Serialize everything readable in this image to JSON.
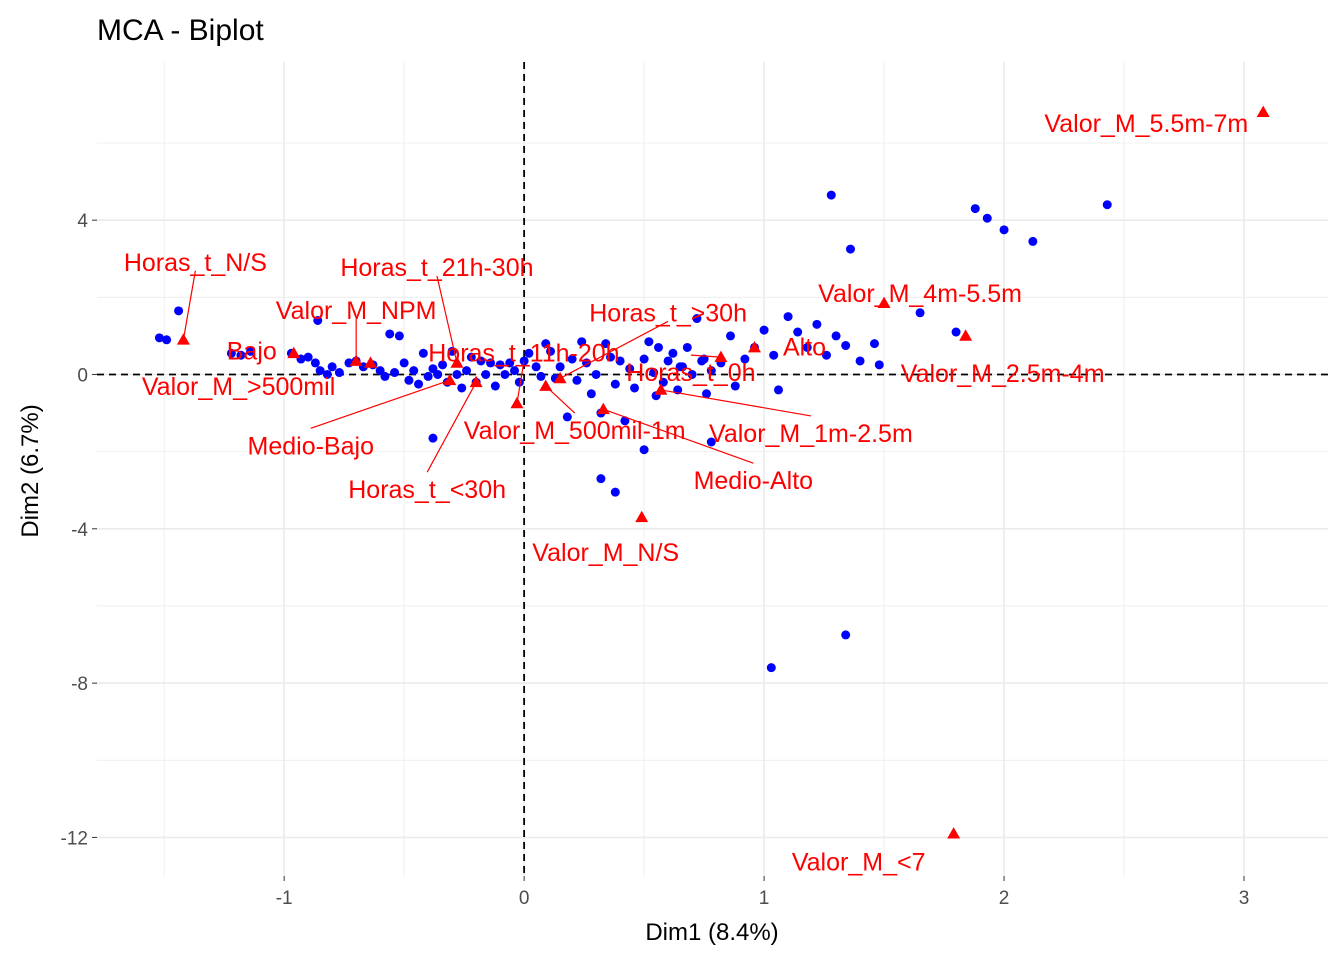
{
  "chart_data": {
    "type": "scatter",
    "title": "MCA - Biplot",
    "xlabel": "Dim1 (8.4%)",
    "ylabel": "Dim2 (6.7%)",
    "xlim": [
      -1.78,
      3.35
    ],
    "ylim": [
      -13.0,
      8.1
    ],
    "x_ticks": [
      -1,
      0,
      1,
      2,
      3
    ],
    "x_tick_labels": [
      "-1",
      "0",
      "1",
      "2",
      "3"
    ],
    "y_ticks": [
      -12,
      -8,
      -4,
      0,
      4
    ],
    "y_tick_labels": [
      "-12",
      "-8",
      "-4",
      "0",
      "4"
    ],
    "grid": true,
    "reference_lines": {
      "x": 0,
      "y": 0,
      "style": "dashed"
    },
    "colors": {
      "individuals": "#0000ff",
      "categories": "#ff0000",
      "grid": "#ebebeb",
      "text": "#000000",
      "ticks": "#4d4d4d"
    },
    "series": [
      {
        "kind": "individuals",
        "marker": "circle",
        "points": [
          [
            -1.52,
            0.95
          ],
          [
            -1.49,
            0.9
          ],
          [
            -1.22,
            0.55
          ],
          [
            -1.18,
            0.5
          ],
          [
            -1.14,
            0.6
          ],
          [
            -0.97,
            0.55
          ],
          [
            -0.93,
            0.4
          ],
          [
            -0.9,
            0.45
          ],
          [
            -0.87,
            0.3
          ],
          [
            -0.85,
            0.1
          ],
          [
            -0.82,
            0.0
          ],
          [
            -0.8,
            0.2
          ],
          [
            -0.77,
            0.05
          ],
          [
            -0.73,
            0.3
          ],
          [
            -0.7,
            0.35
          ],
          [
            -0.67,
            0.2
          ],
          [
            -0.63,
            0.25
          ],
          [
            -0.6,
            0.1
          ],
          [
            -0.58,
            -0.05
          ],
          [
            -0.56,
            1.05
          ],
          [
            -0.54,
            0.05
          ],
          [
            -0.52,
            1.0
          ],
          [
            -0.5,
            0.3
          ],
          [
            -0.48,
            -0.15
          ],
          [
            -0.46,
            0.1
          ],
          [
            -0.44,
            -0.25
          ],
          [
            -0.42,
            0.55
          ],
          [
            -0.4,
            -0.05
          ],
          [
            -0.38,
            0.15
          ],
          [
            -0.36,
            0.0
          ],
          [
            -0.34,
            0.25
          ],
          [
            -0.32,
            -0.2
          ],
          [
            -0.3,
            0.6
          ],
          [
            -0.28,
            0.0
          ],
          [
            -0.26,
            -0.35
          ],
          [
            -0.24,
            0.1
          ],
          [
            -0.22,
            0.45
          ],
          [
            -0.2,
            -0.2
          ],
          [
            -0.18,
            0.35
          ],
          [
            -0.16,
            0.0
          ],
          [
            -0.14,
            0.3
          ],
          [
            -0.12,
            -0.3
          ],
          [
            -0.1,
            0.25
          ],
          [
            -0.08,
            0.0
          ],
          [
            -0.06,
            0.3
          ],
          [
            -0.04,
            0.1
          ],
          [
            -0.02,
            -0.2
          ],
          [
            0.0,
            0.35
          ],
          [
            0.02,
            0.55
          ],
          [
            0.05,
            0.2
          ],
          [
            0.07,
            -0.05
          ],
          [
            0.09,
            0.8
          ],
          [
            0.11,
            0.6
          ],
          [
            0.13,
            -0.1
          ],
          [
            0.15,
            0.2
          ],
          [
            0.18,
            -1.1
          ],
          [
            0.2,
            0.4
          ],
          [
            0.22,
            -0.15
          ],
          [
            0.24,
            0.85
          ],
          [
            0.26,
            0.3
          ],
          [
            0.28,
            -0.5
          ],
          [
            0.3,
            0.0
          ],
          [
            0.32,
            -1.0
          ],
          [
            0.34,
            0.8
          ],
          [
            0.36,
            0.45
          ],
          [
            0.38,
            -0.25
          ],
          [
            0.4,
            0.35
          ],
          [
            0.42,
            -1.2
          ],
          [
            0.44,
            0.15
          ],
          [
            0.46,
            -0.35
          ],
          [
            0.5,
            0.4
          ],
          [
            0.52,
            0.85
          ],
          [
            0.54,
            0.05
          ],
          [
            0.56,
            0.7
          ],
          [
            0.58,
            -0.2
          ],
          [
            0.6,
            0.35
          ],
          [
            0.62,
            0.55
          ],
          [
            0.64,
            -0.4
          ],
          [
            0.66,
            0.2
          ],
          [
            0.68,
            0.7
          ],
          [
            0.7,
            0.0
          ],
          [
            0.72,
            1.45
          ],
          [
            0.74,
            0.35
          ],
          [
            0.76,
            -0.5
          ],
          [
            0.78,
            0.1
          ],
          [
            0.82,
            0.3
          ],
          [
            0.86,
            1.0
          ],
          [
            0.88,
            -0.3
          ],
          [
            0.92,
            0.4
          ],
          [
            0.96,
            0.7
          ],
          [
            1.0,
            1.15
          ],
          [
            1.04,
            0.5
          ],
          [
            1.06,
            -0.4
          ],
          [
            1.1,
            1.5
          ],
          [
            1.14,
            1.1
          ],
          [
            1.18,
            0.7
          ],
          [
            1.22,
            1.3
          ],
          [
            1.26,
            0.5
          ],
          [
            1.3,
            1.0
          ],
          [
            1.34,
            0.75
          ],
          [
            1.4,
            0.35
          ],
          [
            1.46,
            0.8
          ],
          [
            1.48,
            0.25
          ],
          [
            1.65,
            1.6
          ],
          [
            1.8,
            1.1
          ],
          [
            1.28,
            4.65
          ],
          [
            1.36,
            3.25
          ],
          [
            1.88,
            4.3
          ],
          [
            1.93,
            4.05
          ],
          [
            2.0,
            3.75
          ],
          [
            2.12,
            3.45
          ],
          [
            2.43,
            4.4
          ],
          [
            -1.44,
            1.65
          ],
          [
            -0.86,
            1.4
          ],
          [
            0.32,
            -2.7
          ],
          [
            0.38,
            -3.05
          ],
          [
            0.5,
            -1.95
          ],
          [
            0.78,
            -1.75
          ],
          [
            -0.38,
            -1.65
          ],
          [
            1.34,
            -6.75
          ],
          [
            1.03,
            -7.6
          ],
          [
            0.65,
            0.2
          ],
          [
            0.75,
            0.4
          ],
          [
            0.55,
            -0.55
          ]
        ]
      },
      {
        "kind": "categories",
        "marker": "triangle",
        "points": [
          {
            "label": "Valor_M_5.5m-7m",
            "x": 3.08,
            "y": 6.8
          },
          {
            "label": "Valor_M_4m-5.5m",
            "x": 1.5,
            "y": 1.85
          },
          {
            "label": "Valor_M_2.5m-4m",
            "x": 1.84,
            "y": 1.0
          },
          {
            "label": "Alto",
            "x": 0.96,
            "y": 0.7
          },
          {
            "label": "Horas_t_0h",
            "x": 0.82,
            "y": 0.45
          },
          {
            "label": "Valor_M_1m-2.5m",
            "x": 0.57,
            "y": -0.4
          },
          {
            "label": "Medio-Alto",
            "x": 0.33,
            "y": -0.9
          },
          {
            "label": "Valor_M_N/S",
            "x": 0.49,
            "y": -3.7
          },
          {
            "label": "Valor_M_<7",
            "x": 1.79,
            "y": -11.9
          },
          {
            "label": "Horas_t_>30h",
            "x": 0.15,
            "y": -0.1
          },
          {
            "label": "Valor_M_500mil-1m",
            "x": 0.09,
            "y": -0.3
          },
          {
            "label": "Horas_t_11h-20h",
            "x": -0.03,
            "y": -0.75
          },
          {
            "label": "Horas_t_<30h",
            "x": -0.2,
            "y": -0.2
          },
          {
            "label": "Horas_t_21h-30h",
            "x": -0.28,
            "y": 0.3
          },
          {
            "label": "Medio-Bajo",
            "x": -0.31,
            "y": -0.15
          },
          {
            "label": "Valor_M_NPM",
            "x": -0.7,
            "y": 0.35
          },
          {
            "label": "Valor_M_>500mil",
            "x": -0.64,
            "y": 0.3
          },
          {
            "label": "Bajo",
            "x": -0.96,
            "y": 0.55
          },
          {
            "label": "Horas_t_N/S",
            "x": -1.42,
            "y": 0.9
          }
        ]
      }
    ]
  }
}
